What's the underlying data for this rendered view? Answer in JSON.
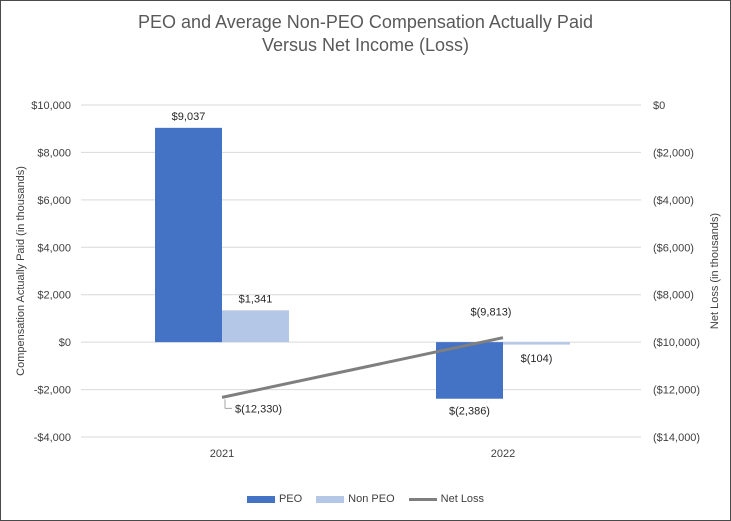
{
  "chart_data": {
    "type": "bar",
    "title_line1": "PEO and Average Non-PEO Compensation Actually Paid",
    "title_line2": "Versus Net Income (Loss)",
    "categories": [
      "2021",
      "2022"
    ],
    "series": [
      {
        "name": "PEO",
        "type": "bar",
        "axis": "left",
        "color": "#4472C4",
        "values": [
          9037,
          -2386
        ],
        "labels": [
          "$9,037",
          "$(2,386)"
        ]
      },
      {
        "name": "Non PEO",
        "type": "bar",
        "axis": "left",
        "color": "#B4C7E7",
        "values": [
          1341,
          -104
        ],
        "labels": [
          "$1,341",
          "$(104)"
        ]
      },
      {
        "name": "Net Loss",
        "type": "line",
        "axis": "right",
        "color": "#7F7F7F",
        "values": [
          -12330,
          -9813
        ],
        "labels": [
          "$(12,330)",
          "$(9,813)"
        ]
      }
    ],
    "ylabel_left": "Compensation Actually Paid (in thousands)",
    "ylabel_right": "Net Loss (in thousands)",
    "ylim_left": [
      -4000,
      10000
    ],
    "ylim_right": [
      -14000,
      0
    ],
    "yticks_left": [
      10000,
      8000,
      6000,
      4000,
      2000,
      0,
      -2000,
      -4000
    ],
    "yticks_right": [
      0,
      -2000,
      -4000,
      -6000,
      -8000,
      -10000,
      -12000,
      -14000
    ],
    "yticklabels_left": [
      "$10,000",
      "$8,000",
      "$6,000",
      "$4,000",
      "$2,000",
      "$0",
      "-$2,000",
      "-$4,000"
    ],
    "yticklabels_right": [
      "$0",
      "($2,000)",
      "($4,000)",
      "($6,000)",
      "($8,000)",
      "($10,000)",
      "($12,000)",
      "($14,000)"
    ],
    "grid": true,
    "legend_position": "bottom"
  }
}
